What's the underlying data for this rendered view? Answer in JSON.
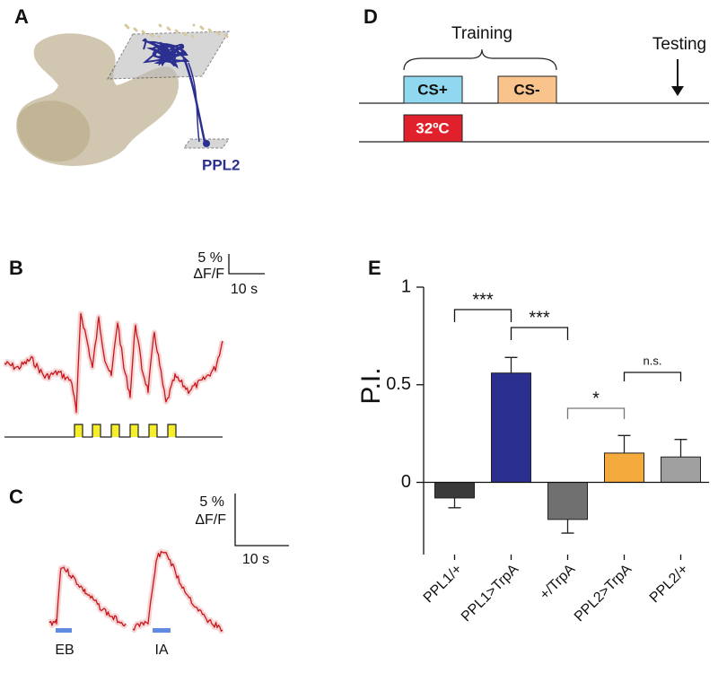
{
  "panels": {
    "A": {
      "letter": "A",
      "label": "PPL2"
    },
    "B": {
      "letter": "B",
      "scale_y": "5 %",
      "scale_unit": "ΔF/F",
      "scale_x": "10 s"
    },
    "C": {
      "letter": "C",
      "scale_y": "5 %",
      "scale_unit": "ΔF/F",
      "scale_x": "10 s",
      "odors": [
        "EB",
        "IA"
      ]
    },
    "D": {
      "letter": "D",
      "training": "Training",
      "testing": "Testing",
      "cs_plus": "CS+",
      "cs_minus": "CS-",
      "temperature": "32ºC"
    }
  },
  "chart_data": {
    "type": "bar",
    "letter": "E",
    "y_label": "P.I.",
    "categories": [
      "PPL1/+",
      "PPL1>TrpA",
      "+/TrpA",
      "PPL2>TrpA",
      "PPL2/+"
    ],
    "values": [
      -0.08,
      0.56,
      -0.19,
      0.15,
      0.13
    ],
    "errors": [
      0.05,
      0.08,
      0.07,
      0.09,
      0.09
    ],
    "colors": [
      "#3a3a3a",
      "#2b2f8f",
      "#707070",
      "#f4aa3c",
      "#a0a0a0"
    ],
    "ylim": [
      -0.37,
      1
    ],
    "yticks": [
      0,
      0.5,
      1
    ],
    "annotations": [
      "***",
      "***",
      "*",
      "n.s."
    ]
  }
}
